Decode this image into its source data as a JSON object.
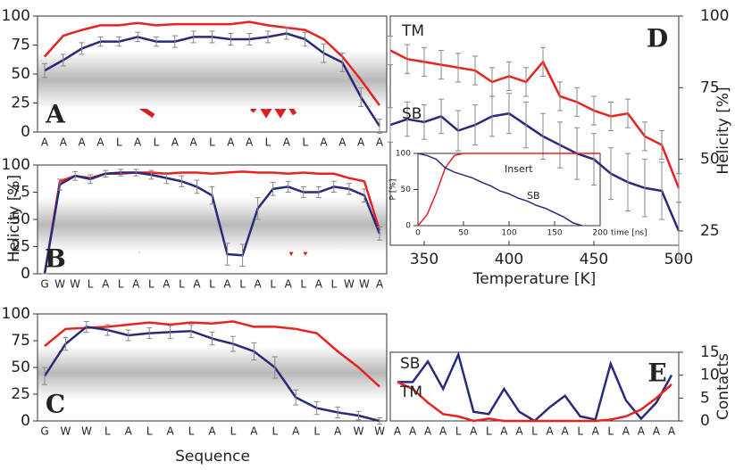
{
  "y_label": "Helicity [%]",
  "x_label": "Sequence",
  "chart_data": [
    {
      "type": "line",
      "panel_label": "A",
      "categories": [
        "A",
        "A",
        "A",
        "A",
        "L",
        "A",
        "L",
        "A",
        "A",
        "L",
        "A",
        "A",
        "L",
        "A",
        "L",
        "A",
        "A",
        "A",
        "A"
      ],
      "ylim": [
        0,
        100
      ],
      "yticks": [
        0,
        25,
        50,
        75,
        100
      ],
      "series": [
        {
          "name": null,
          "color": "#e8231f",
          "values": [
            65,
            83,
            88,
            92,
            92,
            94,
            92,
            93,
            93,
            93,
            93,
            95,
            92,
            90,
            88,
            80,
            65,
            45,
            23
          ]
        },
        {
          "name": null,
          "color": "#2a2a7a",
          "values": [
            53,
            62,
            72,
            78,
            78,
            82,
            78,
            78,
            82,
            82,
            80,
            80,
            82,
            85,
            80,
            68,
            60,
            30,
            5
          ],
          "errors": [
            6,
            5,
            5,
            4,
            4,
            4,
            4,
            5,
            5,
            5,
            5,
            5,
            5,
            5,
            6,
            8,
            8,
            8,
            6
          ]
        }
      ]
    },
    {
      "type": "line",
      "panel_label": "B",
      "categories": [
        "G",
        "W",
        "W",
        "L",
        "A",
        "L",
        "A",
        "L",
        "A",
        "L",
        "A",
        "L",
        "A",
        "L",
        "A",
        "L",
        "A",
        "L",
        "A",
        "L",
        "W",
        "W",
        "A"
      ],
      "ylim": [
        0,
        100
      ],
      "yticks": [
        0,
        25,
        50,
        75,
        100
      ],
      "series": [
        {
          "name": null,
          "color": "#e8231f",
          "values": [
            0,
            85,
            90,
            88,
            92,
            92,
            93,
            93,
            92,
            93,
            93,
            92,
            93,
            94,
            93,
            93,
            92,
            93,
            92,
            92,
            88,
            85,
            40
          ]
        },
        {
          "name": null,
          "color": "#2a2a7a",
          "values": [
            0,
            82,
            90,
            87,
            92,
            93,
            93,
            91,
            88,
            85,
            80,
            72,
            18,
            17,
            60,
            78,
            80,
            75,
            75,
            80,
            78,
            72,
            37
          ],
          "errors": [
            0,
            5,
            4,
            4,
            3,
            3,
            3,
            4,
            5,
            5,
            6,
            8,
            10,
            10,
            10,
            6,
            5,
            5,
            5,
            5,
            5,
            6,
            6
          ]
        }
      ]
    },
    {
      "type": "line",
      "panel_label": "C",
      "categories": [
        "G",
        "W",
        "W",
        "L",
        "A",
        "L",
        "A",
        "L",
        "A",
        "L",
        "A",
        "L",
        "A",
        "L",
        "A",
        "W",
        "W"
      ],
      "ylim": [
        0,
        100
      ],
      "yticks": [
        0,
        25,
        50,
        75,
        100
      ],
      "series": [
        {
          "name": null,
          "color": "#e8231f",
          "values": [
            70,
            86,
            87,
            88,
            90,
            92,
            90,
            92,
            91,
            93,
            88,
            88,
            86,
            82,
            65,
            50,
            32
          ]
        },
        {
          "name": null,
          "color": "#2a2a7a",
          "values": [
            42,
            72,
            88,
            85,
            80,
            82,
            83,
            84,
            77,
            72,
            65,
            50,
            22,
            12,
            8,
            5,
            0
          ],
          "errors": [
            8,
            6,
            5,
            5,
            5,
            5,
            6,
            6,
            6,
            7,
            8,
            10,
            7,
            6,
            5,
            4,
            3
          ]
        }
      ]
    },
    {
      "type": "line",
      "panel_label": "D",
      "x_label": "Temperature [K]",
      "y_label": "Helicity [%]",
      "x": [
        330,
        340,
        350,
        360,
        370,
        380,
        390,
        400,
        410,
        420,
        430,
        440,
        450,
        460,
        470,
        480,
        490,
        500
      ],
      "xlim": [
        330,
        500
      ],
      "xticks": [
        350,
        400,
        450,
        500
      ],
      "ylim": [
        20,
        100
      ],
      "yticks": [
        25,
        50,
        75,
        100
      ],
      "series": [
        {
          "name": "TM",
          "color": "#e8231f",
          "values": [
            88,
            85,
            84,
            83,
            82,
            81,
            77,
            79,
            77,
            84,
            72,
            70,
            67,
            65,
            66,
            58,
            55,
            40
          ],
          "errors": [
            5,
            5,
            5,
            5,
            5,
            5,
            5,
            5,
            5,
            5,
            5,
            5,
            5,
            5,
            5,
            5,
            5,
            5
          ]
        },
        {
          "name": "SB",
          "color": "#2a2a7a",
          "values": [
            62,
            64,
            63,
            65,
            60,
            62,
            65,
            66,
            62,
            58,
            55,
            52,
            50,
            45,
            42,
            40,
            39,
            25
          ],
          "errors": [
            6,
            6,
            6,
            6,
            7,
            7,
            7,
            7,
            8,
            8,
            8,
            9,
            9,
            9,
            10,
            10,
            10,
            10
          ]
        }
      ]
    },
    {
      "type": "line",
      "x_label": "time [ns]",
      "y_label": "P [%]",
      "x": [
        0,
        10,
        20,
        30,
        40,
        50,
        60,
        70,
        80,
        90,
        100,
        110,
        120,
        130,
        140,
        150,
        160,
        170,
        180,
        190,
        200
      ],
      "xlim": [
        0,
        200
      ],
      "xticks": [
        0,
        50,
        100,
        150,
        200
      ],
      "ylim": [
        0,
        100
      ],
      "yticks": [
        0,
        50,
        100
      ],
      "series": [
        {
          "name": "Insert",
          "color": "#e8231f",
          "values": [
            0,
            15,
            45,
            80,
            97,
            100,
            100,
            100,
            100,
            100,
            100,
            100,
            100,
            100,
            100,
            100,
            100,
            100,
            100,
            100,
            100
          ]
        },
        {
          "name": "SB",
          "color": "#2a2a7a",
          "values": [
            100,
            97,
            92,
            80,
            74,
            70,
            66,
            60,
            55,
            48,
            44,
            38,
            34,
            28,
            24,
            18,
            12,
            4,
            0,
            null,
            null
          ]
        }
      ]
    },
    {
      "type": "line",
      "panel_label": "E",
      "y_label": "Contacts",
      "categories": [
        "A",
        "A",
        "A",
        "A",
        "L",
        "A",
        "L",
        "A",
        "A",
        "L",
        "A",
        "A",
        "L",
        "A",
        "L",
        "A",
        "A",
        "A",
        "A"
      ],
      "ylim": [
        0,
        15
      ],
      "yticks": [
        0,
        5,
        10,
        15
      ],
      "series": [
        {
          "name": "SB",
          "color": "#2a2a7a",
          "values": [
            8.5,
            8.5,
            13,
            7,
            14.5,
            2,
            1.5,
            7,
            2,
            0,
            3,
            5.5,
            1,
            0.3,
            12.5,
            4.5,
            0.5,
            4,
            10
          ]
        },
        {
          "name": "TM",
          "color": "#e8231f",
          "values": [
            8.5,
            7,
            4,
            1.5,
            1,
            0,
            0.5,
            0,
            0,
            0,
            0,
            0,
            0,
            0,
            0.3,
            1,
            2.5,
            5,
            8
          ]
        }
      ]
    }
  ]
}
